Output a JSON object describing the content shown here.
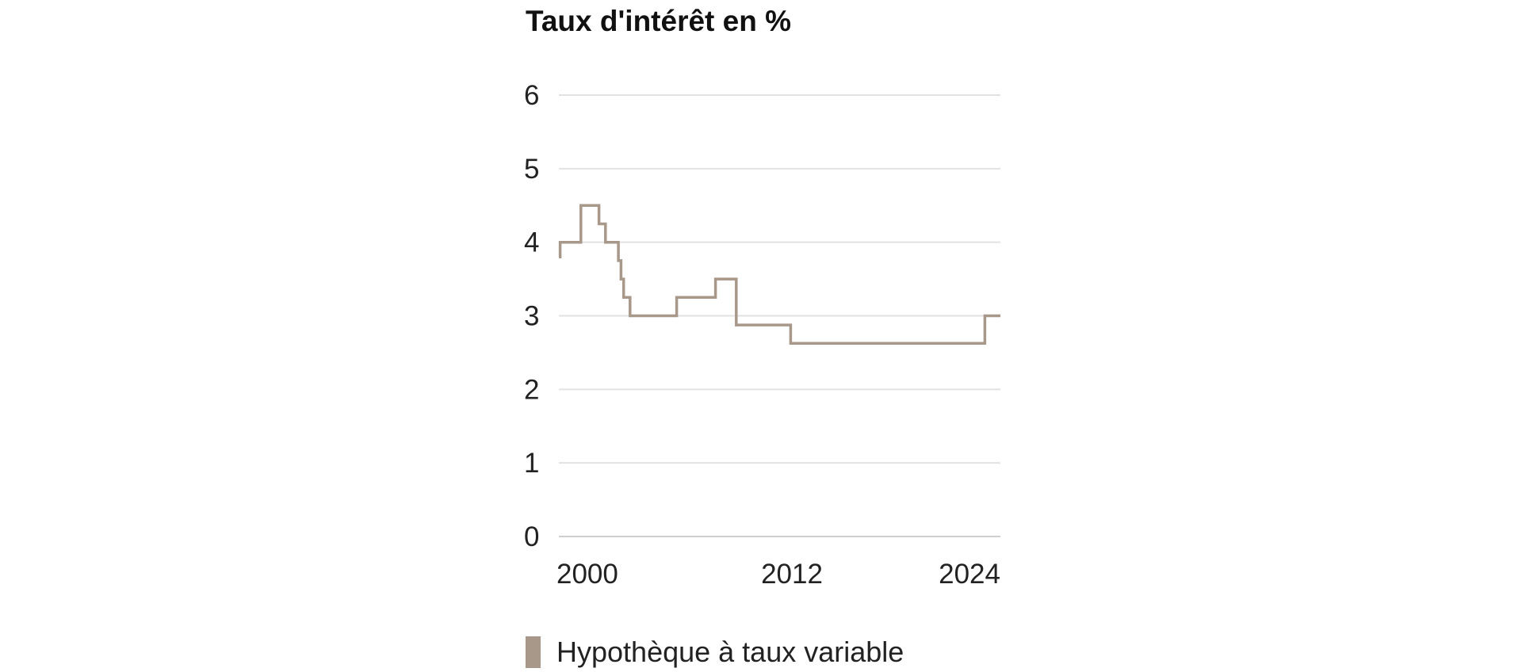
{
  "chart_data": {
    "type": "line",
    "title": "Taux d'intérêt en %",
    "xlabel": "",
    "ylabel": "",
    "ylim": [
      0,
      6
    ],
    "xlim": [
      "1997-01",
      "2025-06"
    ],
    "y_ticks": [
      "0",
      "1",
      "2",
      "3",
      "4",
      "5",
      "6"
    ],
    "x_ticks": [
      "2000",
      "2012",
      "2024"
    ],
    "grid": true,
    "legend_position": "bottom-left",
    "series": [
      {
        "name": "Hypothèque à taux variable",
        "color": "#a8988a",
        "step": true,
        "x": [
          "1997-01",
          "1997-02",
          "1997-09",
          "1998-06",
          "1999-02",
          "1999-08",
          "2000-01",
          "2000-07",
          "2000-11",
          "2001-01",
          "2001-03",
          "2001-05",
          "2001-08",
          "2003-06",
          "2004-08",
          "2004-10",
          "2007-02",
          "2008-01",
          "2008-06",
          "2009-01",
          "2011-12",
          "2024-06",
          "2025-06"
        ],
        "values": [
          3.8,
          4.0,
          4.0,
          4.5,
          4.5,
          4.25,
          4.0,
          4.0,
          3.75,
          3.5,
          3.25,
          3.25,
          3.0,
          3.0,
          3.25,
          3.25,
          3.5,
          3.5,
          2.875,
          2.875,
          2.625,
          3.0,
          3.0
        ]
      }
    ]
  }
}
